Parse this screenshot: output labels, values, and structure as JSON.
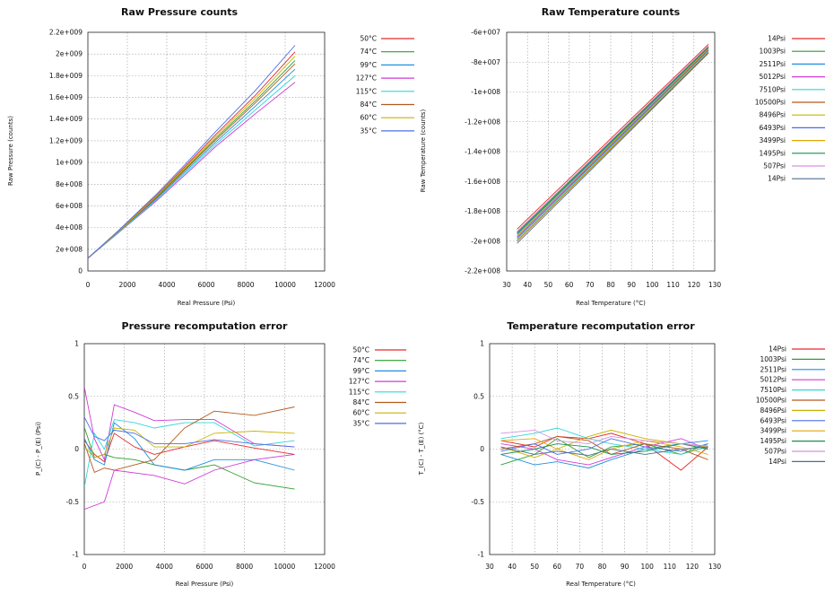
{
  "chart_data": [
    {
      "type": "line",
      "title": "Raw Pressure counts",
      "xlabel": "Real Pressure (Psi)",
      "ylabel": "Raw Pressure (counts)",
      "xlim": [
        0,
        12000
      ],
      "ylim": [
        0,
        2200000000
      ],
      "xticks": [
        0,
        2000,
        4000,
        6000,
        8000,
        10000,
        12000
      ],
      "xtick_labels": [
        "0",
        "2000",
        "4000",
        "6000",
        "8000",
        "10000",
        "12000"
      ],
      "yticks": [
        0,
        200000000,
        400000000,
        600000000,
        800000000,
        1000000000,
        1200000000,
        1400000000,
        1600000000,
        1800000000,
        2000000000,
        2200000000
      ],
      "ytick_labels": [
        "0",
        "2e+008",
        "4e+008",
        "6e+008",
        "8e+008",
        "1e+009",
        "1.2e+009",
        "1.4e+009",
        "1.6e+009",
        "1.8e+009",
        "2e+009",
        "2.2e+009"
      ],
      "grid": true,
      "legend_position": "right",
      "series": [
        {
          "name": "50°C",
          "color": "#e8292b",
          "x": [
            14,
            1495,
            3499,
            5012,
            6493,
            8496,
            10500
          ],
          "y": [
            120000000,
            360000000,
            700000000,
            980000000,
            1260000000,
            1620000000,
            2020000000
          ]
        },
        {
          "name": "74°C",
          "color": "#2ca02c",
          "x": [
            14,
            1495,
            3499,
            5012,
            6493,
            8496,
            10500
          ],
          "y": [
            120000000,
            356000000,
            685000000,
            955000000,
            1225000000,
            1570000000,
            1940000000
          ]
        },
        {
          "name": "99°C",
          "color": "#1f8fe0",
          "x": [
            14,
            1495,
            3499,
            5012,
            6493,
            8496,
            10500
          ],
          "y": [
            120000000,
            350000000,
            670000000,
            930000000,
            1190000000,
            1520000000,
            1860000000
          ]
        },
        {
          "name": "127°C",
          "color": "#d03ad6",
          "x": [
            14,
            1495,
            3499,
            5012,
            6493,
            8496,
            10500
          ],
          "y": [
            120000000,
            343000000,
            650000000,
            900000000,
            1150000000,
            1450000000,
            1740000000
          ]
        },
        {
          "name": "115°C",
          "color": "#33d6d6",
          "x": [
            14,
            1495,
            3499,
            5012,
            6493,
            8496,
            10500
          ],
          "y": [
            120000000,
            346000000,
            660000000,
            915000000,
            1170000000,
            1485000000,
            1800000000
          ]
        },
        {
          "name": "84°C",
          "color": "#b35a1f",
          "x": [
            14,
            1495,
            3499,
            5012,
            6493,
            8496,
            10500
          ],
          "y": [
            120000000,
            354000000,
            680000000,
            945000000,
            1210000000,
            1550000000,
            1910000000
          ]
        },
        {
          "name": "60°C",
          "color": "#c8b400",
          "x": [
            14,
            1495,
            3499,
            5012,
            6493,
            8496,
            10500
          ],
          "y": [
            120000000,
            358000000,
            692000000,
            968000000,
            1242000000,
            1595000000,
            1980000000
          ]
        },
        {
          "name": "35°C",
          "color": "#4e6ee8",
          "x": [
            14,
            1495,
            3499,
            5012,
            6493,
            8496,
            10500
          ],
          "y": [
            120000000,
            364000000,
            712000000,
            998000000,
            1288000000,
            1665000000,
            2080000000
          ]
        }
      ]
    },
    {
      "type": "line",
      "title": "Raw Temperature counts",
      "xlabel": "Real Temperature (°C)",
      "ylabel": "Raw Temperature (counts)",
      "xlim": [
        30,
        130
      ],
      "ylim": [
        -220000000,
        -60000000
      ],
      "xticks": [
        30,
        40,
        50,
        60,
        70,
        80,
        90,
        100,
        110,
        120,
        130
      ],
      "xtick_labels": [
        "30",
        "40",
        "50",
        "60",
        "70",
        "80",
        "90",
        "100",
        "110",
        "120",
        "130"
      ],
      "yticks": [
        -220000000,
        -200000000,
        -180000000,
        -160000000,
        -140000000,
        -120000000,
        -100000000,
        -80000000,
        -60000000
      ],
      "ytick_labels": [
        "-2.2e+008",
        "-2e+008",
        "-1.8e+008",
        "-1.6e+008",
        "-1.4e+008",
        "-1.2e+008",
        "-1e+008",
        "-8e+007",
        "-6e+007"
      ],
      "grid": true,
      "legend_position": "right",
      "series": [
        {
          "name": "14Psi",
          "color": "#e8292b",
          "x": [
            35,
            127
          ],
          "y": [
            -192000000,
            -68000000
          ]
        },
        {
          "name": "1003Psi",
          "color": "#2ca02c",
          "x": [
            35,
            127
          ],
          "y": [
            -194000000,
            -69500000
          ]
        },
        {
          "name": "2511Psi",
          "color": "#1f8fe0",
          "x": [
            35,
            127
          ],
          "y": [
            -195500000,
            -70500000
          ]
        },
        {
          "name": "5012Psi",
          "color": "#d03ad6",
          "x": [
            35,
            127
          ],
          "y": [
            -197000000,
            -71500000
          ]
        },
        {
          "name": "7510Psi",
          "color": "#33d6d6",
          "x": [
            35,
            127
          ],
          "y": [
            -198500000,
            -72500000
          ]
        },
        {
          "name": "10500Psi",
          "color": "#b35a1f",
          "x": [
            35,
            127
          ],
          "y": [
            -200000000,
            -73500000
          ]
        },
        {
          "name": "8496Psi",
          "color": "#c8b400",
          "x": [
            35,
            127
          ],
          "y": [
            -199500000,
            -73000000
          ]
        },
        {
          "name": "6493Psi",
          "color": "#4e6ee8",
          "x": [
            35,
            127
          ],
          "y": [
            -198000000,
            -72000000
          ]
        },
        {
          "name": "3499Psi",
          "color": "#e0a800",
          "x": [
            35,
            127
          ],
          "y": [
            -196500000,
            -71000000
          ]
        },
        {
          "name": "1495Psi",
          "color": "#1a8f4f",
          "x": [
            35,
            127
          ],
          "y": [
            -194800000,
            -70000000
          ]
        },
        {
          "name": "507Psi",
          "color": "#d98fe0",
          "x": [
            35,
            127
          ],
          "y": [
            -193500000,
            -69000000
          ]
        },
        {
          "name": "14Psi",
          "color": "#4c6f8f",
          "x": [
            35,
            127
          ],
          "y": [
            -201500000,
            -74000000
          ]
        }
      ]
    },
    {
      "type": "line",
      "title": "Pressure recomputation error",
      "xlabel": "Real Pressure (Psi)",
      "ylabel": "P_(C) - P_(E) (Psi)",
      "xlim": [
        0,
        12000
      ],
      "ylim": [
        -1,
        1
      ],
      "xticks": [
        0,
        2000,
        4000,
        6000,
        8000,
        10000,
        12000
      ],
      "xtick_labels": [
        "0",
        "2000",
        "4000",
        "6000",
        "8000",
        "10000",
        "12000"
      ],
      "yticks": [
        -1,
        -0.5,
        0,
        0.5,
        1
      ],
      "ytick_labels": [
        "-1",
        "-0.5",
        "0",
        "0.5",
        "1"
      ],
      "grid": true,
      "legend_position": "right",
      "series": [
        {
          "name": "50°C",
          "color": "#e8292b",
          "x": [
            14,
            507,
            1003,
            1495,
            2511,
            3499,
            5012,
            6493,
            8496,
            10500
          ],
          "y": [
            0.08,
            -0.05,
            -0.12,
            0.15,
            0.02,
            -0.05,
            0.02,
            0.08,
            0.01,
            -0.05
          ]
        },
        {
          "name": "74°C",
          "color": "#2ca02c",
          "x": [
            14,
            507,
            1003,
            1495,
            2511,
            3499,
            5012,
            6493,
            8496,
            10500
          ],
          "y": [
            0.2,
            -0.08,
            -0.05,
            -0.08,
            -0.1,
            -0.15,
            -0.2,
            -0.15,
            -0.32,
            -0.38
          ]
        },
        {
          "name": "99°C",
          "color": "#1f8fe0",
          "x": [
            14,
            507,
            1003,
            1495,
            2511,
            3499,
            5012,
            6493,
            8496,
            10500
          ],
          "y": [
            0.1,
            -0.1,
            -0.15,
            0.25,
            0.1,
            -0.15,
            -0.2,
            -0.1,
            -0.1,
            -0.2
          ]
        },
        {
          "name": "127°C",
          "color": "#d03ad6",
          "x": [
            14,
            507,
            1003,
            1495,
            2511,
            3499,
            5012,
            6493,
            8496,
            10500
          ],
          "y": [
            0.58,
            0.1,
            -0.1,
            0.42,
            0.35,
            0.27,
            0.28,
            0.28,
            0.05,
            0.02
          ]
        },
        {
          "name": "115°C",
          "color": "#33d6d6",
          "x": [
            14,
            507,
            1003,
            1495,
            2511,
            3499,
            5012,
            6493,
            8496,
            10500
          ],
          "y": [
            -0.35,
            0.15,
            0.0,
            0.28,
            0.25,
            0.2,
            0.25,
            0.25,
            0.03,
            0.08
          ]
        },
        {
          "name": "84°C",
          "color": "#b35a1f",
          "x": [
            14,
            507,
            1003,
            1495,
            2511,
            3499,
            5012,
            6493,
            8496,
            10500
          ],
          "y": [
            0.05,
            -0.22,
            -0.18,
            -0.2,
            -0.15,
            -0.1,
            0.2,
            0.36,
            0.32,
            0.4
          ]
        },
        {
          "name": "60°C",
          "color": "#c8b400",
          "x": [
            14,
            507,
            1003,
            1495,
            2511,
            3499,
            5012,
            6493,
            8496,
            10500
          ],
          "y": [
            0.02,
            -0.08,
            -0.05,
            0.2,
            0.18,
            0.02,
            0.02,
            0.15,
            0.17,
            0.15
          ]
        },
        {
          "name": "35°C",
          "color": "#4e6ee8",
          "x": [
            14,
            507,
            1003,
            1495,
            2511,
            3499,
            5012,
            6493,
            8496,
            10500
          ],
          "y": [
            0.3,
            0.12,
            0.08,
            0.18,
            0.15,
            0.05,
            0.05,
            0.09,
            0.05,
            0.02
          ]
        },
        {
          "name": "",
          "color": "#d03ad6",
          "x": [
            14,
            1003,
            1495,
            3499,
            5012,
            6493,
            8496,
            10500
          ],
          "y": [
            -0.57,
            -0.5,
            -0.2,
            -0.25,
            -0.33,
            -0.2,
            -0.1,
            -0.05
          ]
        }
      ]
    },
    {
      "type": "line",
      "title": "Temperature recomputation error",
      "xlabel": "Real Temperature (°C)",
      "ylabel": "T_(C) - T_(E) (°C)",
      "xlim": [
        30,
        130
      ],
      "ylim": [
        -1,
        1
      ],
      "xticks": [
        30,
        40,
        50,
        60,
        70,
        80,
        90,
        100,
        110,
        120,
        130
      ],
      "xtick_labels": [
        "30",
        "40",
        "50",
        "60",
        "70",
        "80",
        "90",
        "100",
        "110",
        "120",
        "130"
      ],
      "yticks": [
        -1,
        -0.5,
        0,
        0.5,
        1
      ],
      "ytick_labels": [
        "-1",
        "-0.5",
        "0",
        "0.5",
        "1"
      ],
      "grid": true,
      "legend_position": "right",
      "series": [
        {
          "name": "14Psi",
          "color": "#e8292b",
          "x": [
            35,
            50,
            60,
            74,
            84,
            99,
            115,
            127
          ],
          "y": [
            0.08,
            0.02,
            0.12,
            0.1,
            0.15,
            0.05,
            -0.2,
            0.02
          ]
        },
        {
          "name": "1003Psi",
          "color": "#2ca02c",
          "x": [
            35,
            50,
            60,
            74,
            84,
            99,
            115,
            127
          ],
          "y": [
            -0.15,
            -0.05,
            0.1,
            -0.08,
            0.02,
            0.05,
            -0.05,
            0.05
          ]
        },
        {
          "name": "2511Psi",
          "color": "#1f8fe0",
          "x": [
            35,
            50,
            60,
            74,
            84,
            99,
            115,
            127
          ],
          "y": [
            -0.05,
            -0.15,
            -0.12,
            -0.18,
            -0.1,
            0.0,
            0.05,
            0.08
          ]
        },
        {
          "name": "5012Psi",
          "color": "#d03ad6",
          "x": [
            35,
            50,
            60,
            74,
            84,
            99,
            115,
            127
          ],
          "y": [
            0.05,
            0.0,
            -0.1,
            -0.15,
            -0.08,
            0.02,
            0.1,
            0.0
          ]
        },
        {
          "name": "7510Psi",
          "color": "#33d6d6",
          "x": [
            35,
            50,
            60,
            74,
            84,
            99,
            115,
            127
          ],
          "y": [
            0.1,
            0.15,
            0.2,
            0.1,
            0.05,
            0.0,
            -0.05,
            0.02
          ]
        },
        {
          "name": "10500Psi",
          "color": "#b35a1f",
          "x": [
            35,
            50,
            60,
            74,
            84,
            99,
            115,
            127
          ],
          "y": [
            0.0,
            0.05,
            0.12,
            0.08,
            -0.05,
            0.05,
            0.0,
            -0.1
          ]
        },
        {
          "name": "8496Psi",
          "color": "#c8b400",
          "x": [
            35,
            50,
            60,
            74,
            84,
            99,
            115,
            127
          ],
          "y": [
            0.02,
            -0.08,
            0.0,
            0.12,
            0.18,
            0.1,
            0.05,
            0.02
          ]
        },
        {
          "name": "6493Psi",
          "color": "#4e6ee8",
          "x": [
            35,
            50,
            60,
            74,
            84,
            99,
            115,
            127
          ],
          "y": [
            -0.02,
            0.05,
            -0.05,
            0.0,
            0.1,
            0.02,
            -0.02,
            0.05
          ]
        },
        {
          "name": "3499Psi",
          "color": "#e0a800",
          "x": [
            35,
            50,
            60,
            74,
            84,
            99,
            115,
            127
          ],
          "y": [
            0.08,
            0.1,
            0.0,
            -0.1,
            0.0,
            0.08,
            0.02,
            -0.05
          ]
        },
        {
          "name": "1495Psi",
          "color": "#1a8f4f",
          "x": [
            35,
            50,
            60,
            74,
            84,
            99,
            115,
            127
          ],
          "y": [
            -0.05,
            0.0,
            0.05,
            0.02,
            -0.05,
            -0.02,
            0.05,
            0.0
          ]
        },
        {
          "name": "507Psi",
          "color": "#d98fe0",
          "x": [
            35,
            50,
            60,
            74,
            84,
            99,
            115,
            127
          ],
          "y": [
            0.15,
            0.18,
            0.08,
            0.05,
            0.12,
            0.08,
            0.05,
            0.03
          ]
        },
        {
          "name": "14Psi",
          "color": "#4c6f8f",
          "x": [
            35,
            50,
            60,
            74,
            84,
            99,
            115,
            127
          ],
          "y": [
            0.02,
            -0.05,
            -0.02,
            -0.06,
            0.0,
            -0.05,
            0.0,
            0.02
          ]
        }
      ]
    }
  ]
}
